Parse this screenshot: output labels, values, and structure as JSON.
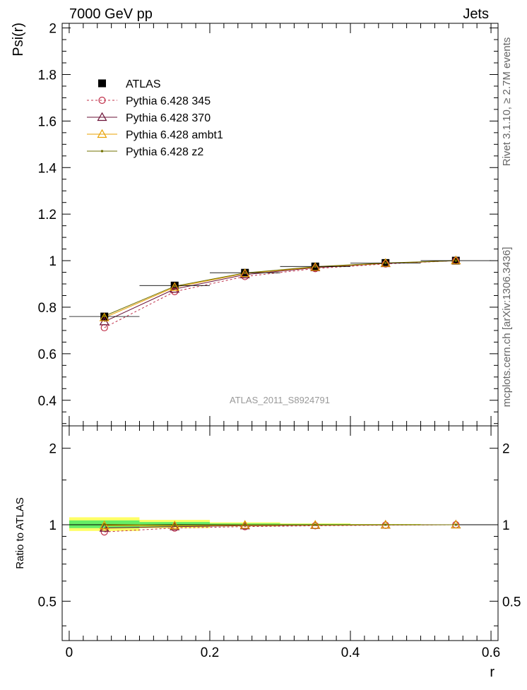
{
  "header": {
    "left": "7000 GeV pp",
    "right": "Jets"
  },
  "side_labels": {
    "top": "Rivet 3.1.10, ≥ 2.7M events",
    "bottom": "mcplots.cern.ch [arXiv:1306.3436]"
  },
  "chart_data": [
    {
      "type": "scatter",
      "title": "",
      "ylabel": "Psi(r)",
      "xlabel": "",
      "xlim": [
        -0.01,
        0.61
      ],
      "ylim": [
        0.29,
        2.02
      ],
      "yticks": [
        0.4,
        0.6,
        0.8,
        1,
        1.2,
        1.4,
        1.6,
        1.8,
        2
      ],
      "ytick_labels": [
        "0.4",
        "0.6",
        "0.8",
        "1",
        "1.2",
        "1.4",
        "1.6",
        "1.8",
        "2"
      ],
      "watermark": "ATLAS_2011_S8924791",
      "legend_position": "top-left",
      "x": [
        0.05,
        0.15,
        0.25,
        0.35,
        0.45,
        0.55
      ],
      "series": [
        {
          "name": "ATLAS",
          "marker": "square-filled",
          "color": "#000000",
          "values": [
            0.76,
            0.893,
            0.948,
            0.975,
            0.99,
            1.0
          ]
        },
        {
          "name": "Pythia 6.428 345",
          "marker": "circle-open",
          "line": "dashed",
          "color": "#c0304a",
          "values": [
            0.712,
            0.867,
            0.932,
            0.966,
            0.986,
            1.0
          ]
        },
        {
          "name": "Pythia 6.428 370",
          "marker": "triangle-open",
          "line": "solid",
          "color": "#6a1035",
          "values": [
            0.738,
            0.878,
            0.94,
            0.97,
            0.988,
            1.0
          ]
        },
        {
          "name": "Pythia 6.428 ambt1",
          "marker": "triangle-open",
          "line": "solid",
          "color": "#e8a000",
          "values": [
            0.755,
            0.886,
            0.945,
            0.972,
            0.989,
            1.0
          ]
        },
        {
          "name": "Pythia 6.428 z2",
          "marker": "dot",
          "line": "solid",
          "color": "#707000",
          "values": [
            0.762,
            0.89,
            0.947,
            0.974,
            0.99,
            1.0
          ]
        }
      ]
    },
    {
      "type": "scatter",
      "title": "",
      "ylabel": "Ratio to ATLAS",
      "xlabel": "r",
      "xlim": [
        -0.01,
        0.61
      ],
      "ylim": [
        0.35,
        2.45
      ],
      "log_y": true,
      "yticks": [
        0.5,
        1,
        2
      ],
      "ytick_labels": [
        "0.5",
        "1",
        "2"
      ],
      "xticks": [
        0,
        0.2,
        0.4,
        0.6
      ],
      "xtick_labels": [
        "0",
        "0.2",
        "0.4",
        "0.6"
      ],
      "x": [
        0.05,
        0.15,
        0.25,
        0.35,
        0.45,
        0.55
      ],
      "x_bins": [
        [
          0.0,
          0.1
        ],
        [
          0.1,
          0.2
        ],
        [
          0.2,
          0.3
        ],
        [
          0.3,
          0.4
        ],
        [
          0.4,
          0.5
        ],
        [
          0.5,
          0.6
        ]
      ],
      "band_yellow": [
        [
          0.945,
          1.07
        ],
        [
          0.97,
          1.045
        ],
        [
          0.985,
          1.022
        ],
        [
          0.992,
          1.012
        ],
        [
          0.996,
          1.006
        ],
        [
          0.999,
          1.002
        ]
      ],
      "band_green": [
        [
          0.97,
          1.04
        ],
        [
          0.983,
          1.025
        ],
        [
          0.992,
          1.012
        ],
        [
          0.996,
          1.007
        ],
        [
          0.998,
          1.004
        ],
        [
          0.999,
          1.001
        ]
      ],
      "band_colors": {
        "yellow": "#ffff66",
        "green": "#66ee66"
      },
      "series": [
        {
          "name": "Pythia 6.428 345",
          "marker": "circle-open",
          "line": "dashed",
          "color": "#c0304a",
          "values": [
            0.937,
            0.971,
            0.983,
            0.991,
            0.996,
            1.0
          ]
        },
        {
          "name": "Pythia 6.428 370",
          "marker": "triangle-open",
          "line": "solid",
          "color": "#6a1035",
          "values": [
            0.971,
            0.983,
            0.992,
            0.995,
            0.998,
            1.0
          ]
        },
        {
          "name": "Pythia 6.428 ambt1",
          "marker": "triangle-open",
          "line": "solid",
          "color": "#e8a000",
          "values": [
            0.993,
            0.992,
            0.997,
            0.997,
            0.999,
            1.0
          ]
        },
        {
          "name": "Pythia 6.428 z2",
          "marker": "dot",
          "line": "solid",
          "color": "#707000",
          "values": [
            1.003,
            0.997,
            0.999,
            0.999,
            1.0,
            1.0
          ]
        }
      ]
    }
  ]
}
